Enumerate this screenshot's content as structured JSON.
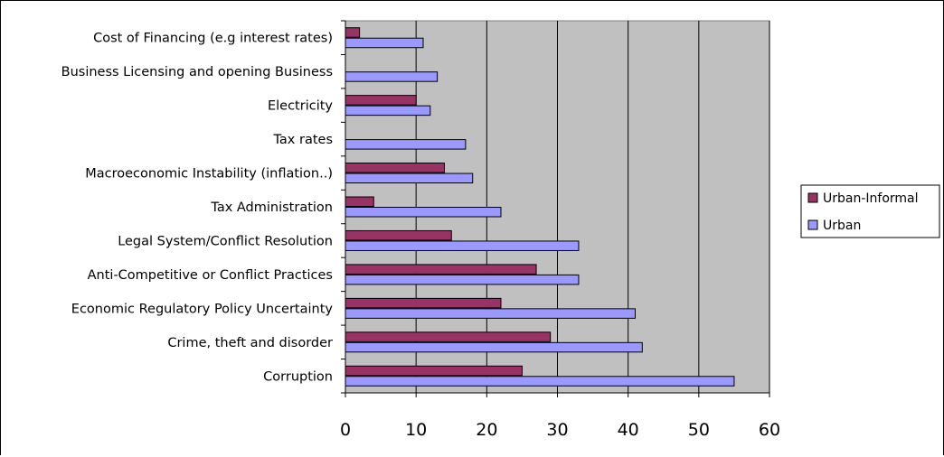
{
  "chart_data": {
    "type": "bar",
    "orientation": "horizontal",
    "categories": [
      "Cost of Financing (e.g interest rates)",
      "Business Licensing and opening Business",
      "Electricity",
      "Tax rates",
      "Macroeconomic Instability (inflation..)",
      "Tax Administration",
      "Legal System/Conflict Resolution",
      "Anti-Competitive or Conflict Practices",
      "Economic Regulatory Policy Uncertainty",
      "Crime, theft and disorder",
      "Corruption"
    ],
    "series": [
      {
        "name": "Urban-Informal",
        "color": "#993366",
        "values": [
          2,
          0,
          10,
          0,
          14,
          4,
          15,
          27,
          22,
          29,
          25
        ]
      },
      {
        "name": "Urban",
        "color": "#9999FF",
        "values": [
          11,
          13,
          12,
          17,
          18,
          22,
          33,
          33,
          41,
          42,
          55
        ]
      }
    ],
    "xlim": [
      0,
      60
    ],
    "xticks": [
      "0",
      "10",
      "20",
      "30",
      "40",
      "50",
      "60"
    ],
    "title": "",
    "xlabel": "",
    "ylabel": "",
    "grid": "vertical",
    "plot_background": "#C0C0C0",
    "legend_position": "right"
  }
}
